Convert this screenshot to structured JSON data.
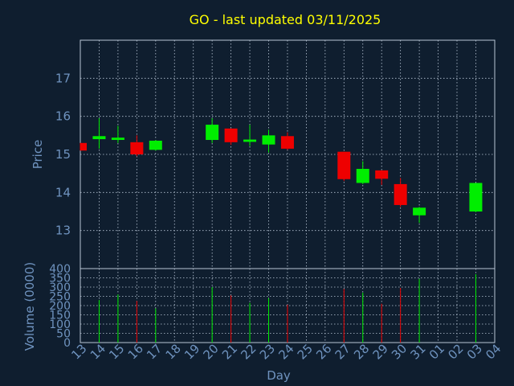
{
  "chart_data": {
    "type": "candlestick",
    "title": "GO - last updated 03/11/2025",
    "xlabel": "Day",
    "price_panel": {
      "ylabel": "Price",
      "yticks": [
        13,
        14,
        15,
        16,
        17
      ],
      "ylim": [
        12.0,
        18.0
      ]
    },
    "volume_panel": {
      "ylabel": "Volume (0000)",
      "yticks": [
        0,
        50,
        100,
        150,
        200,
        250,
        300,
        350,
        400
      ],
      "ylim": [
        0,
        400
      ]
    },
    "x_ticks": [
      "13",
      "14",
      "15",
      "16",
      "17",
      "18",
      "19",
      "20",
      "21",
      "22",
      "23",
      "24",
      "25",
      "26",
      "27",
      "28",
      "29",
      "30",
      "31",
      "01",
      "02",
      "03",
      "04"
    ],
    "candles": [
      {
        "day": "13",
        "open": 15.3,
        "high": 15.3,
        "low": 15.1,
        "close": 15.1,
        "volume": 0,
        "direction": "down"
      },
      {
        "day": "14",
        "open": 15.4,
        "high": 15.95,
        "low": 15.15,
        "close": 15.48,
        "volume": 230,
        "direction": "up"
      },
      {
        "day": "15",
        "open": 15.38,
        "high": 15.75,
        "low": 15.3,
        "close": 15.44,
        "volume": 260,
        "direction": "up"
      },
      {
        "day": "16",
        "open": 15.32,
        "high": 15.5,
        "low": 14.95,
        "close": 15.0,
        "volume": 225,
        "direction": "down"
      },
      {
        "day": "17",
        "open": 15.12,
        "high": 15.38,
        "low": 15.1,
        "close": 15.36,
        "volume": 185,
        "direction": "up"
      },
      {
        "day": "20",
        "open": 15.38,
        "high": 15.95,
        "low": 15.3,
        "close": 15.78,
        "volume": 300,
        "direction": "up"
      },
      {
        "day": "21",
        "open": 15.68,
        "high": 15.68,
        "low": 15.25,
        "close": 15.32,
        "volume": 255,
        "direction": "down"
      },
      {
        "day": "22",
        "open": 15.33,
        "high": 15.78,
        "low": 15.22,
        "close": 15.39,
        "volume": 215,
        "direction": "up"
      },
      {
        "day": "23",
        "open": 15.26,
        "high": 15.65,
        "low": 15.05,
        "close": 15.5,
        "volume": 240,
        "direction": "up"
      },
      {
        "day": "24",
        "open": 15.48,
        "high": 15.58,
        "low": 15.12,
        "close": 15.15,
        "volume": 205,
        "direction": "down"
      },
      {
        "day": "27",
        "open": 15.07,
        "high": 15.07,
        "low": 14.3,
        "close": 14.35,
        "volume": 290,
        "direction": "down"
      },
      {
        "day": "28",
        "open": 14.25,
        "high": 14.82,
        "low": 14.22,
        "close": 14.62,
        "volume": 270,
        "direction": "up"
      },
      {
        "day": "29",
        "open": 14.58,
        "high": 14.58,
        "low": 14.2,
        "close": 14.36,
        "volume": 210,
        "direction": "down"
      },
      {
        "day": "30",
        "open": 14.22,
        "high": 14.38,
        "low": 13.62,
        "close": 13.67,
        "volume": 295,
        "direction": "down"
      },
      {
        "day": "31",
        "open": 13.4,
        "high": 13.62,
        "low": 13.2,
        "close": 13.6,
        "volume": 345,
        "direction": "up"
      },
      {
        "day": "03",
        "open": 13.5,
        "high": 14.25,
        "low": 13.48,
        "close": 14.25,
        "volume": 370,
        "direction": "up"
      }
    ],
    "colors": {
      "up": "#00ee00",
      "down": "#ee0000",
      "grid": "#b9c6d6",
      "axis_text": "#6f93bf",
      "title": "#ffff00",
      "background": "#0f1e2f",
      "frame": "#b9c6d6"
    },
    "grid": true
  }
}
